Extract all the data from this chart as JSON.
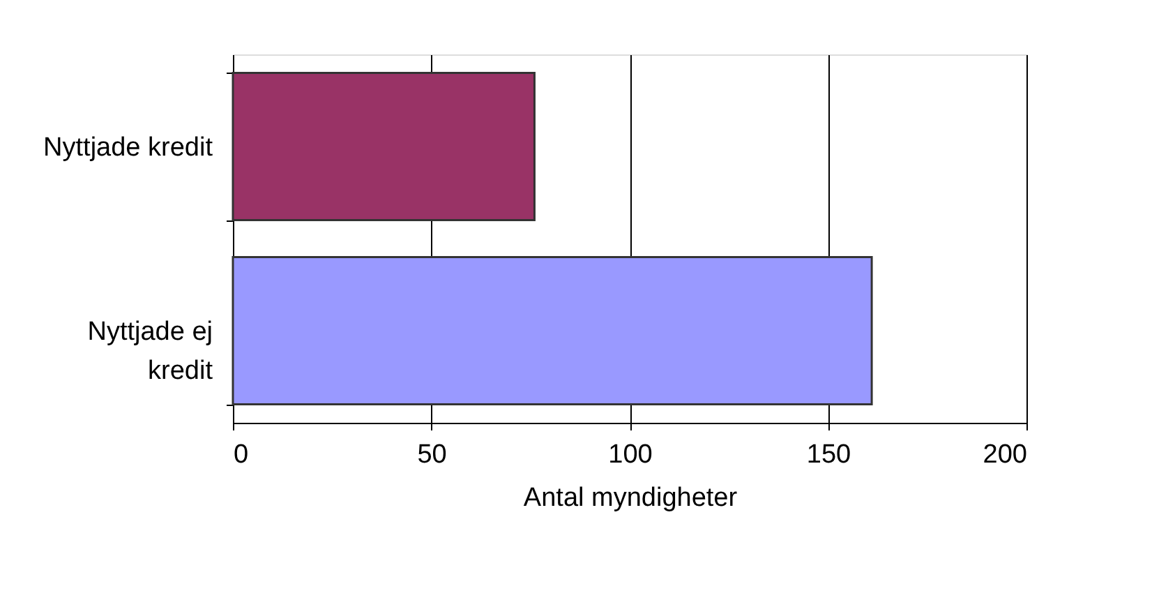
{
  "chart_data": {
    "type": "bar",
    "orientation": "horizontal",
    "xlabel": "Antal myndigheter",
    "categories": [
      "Nyttjade kredit",
      "Nyttjade ej kredit"
    ],
    "values": [
      76,
      161
    ],
    "colors": [
      "#993366",
      "#9999ff"
    ],
    "xlim": [
      0,
      200
    ],
    "xticks": [
      0,
      50,
      100,
      150,
      200
    ],
    "grid": "x"
  }
}
